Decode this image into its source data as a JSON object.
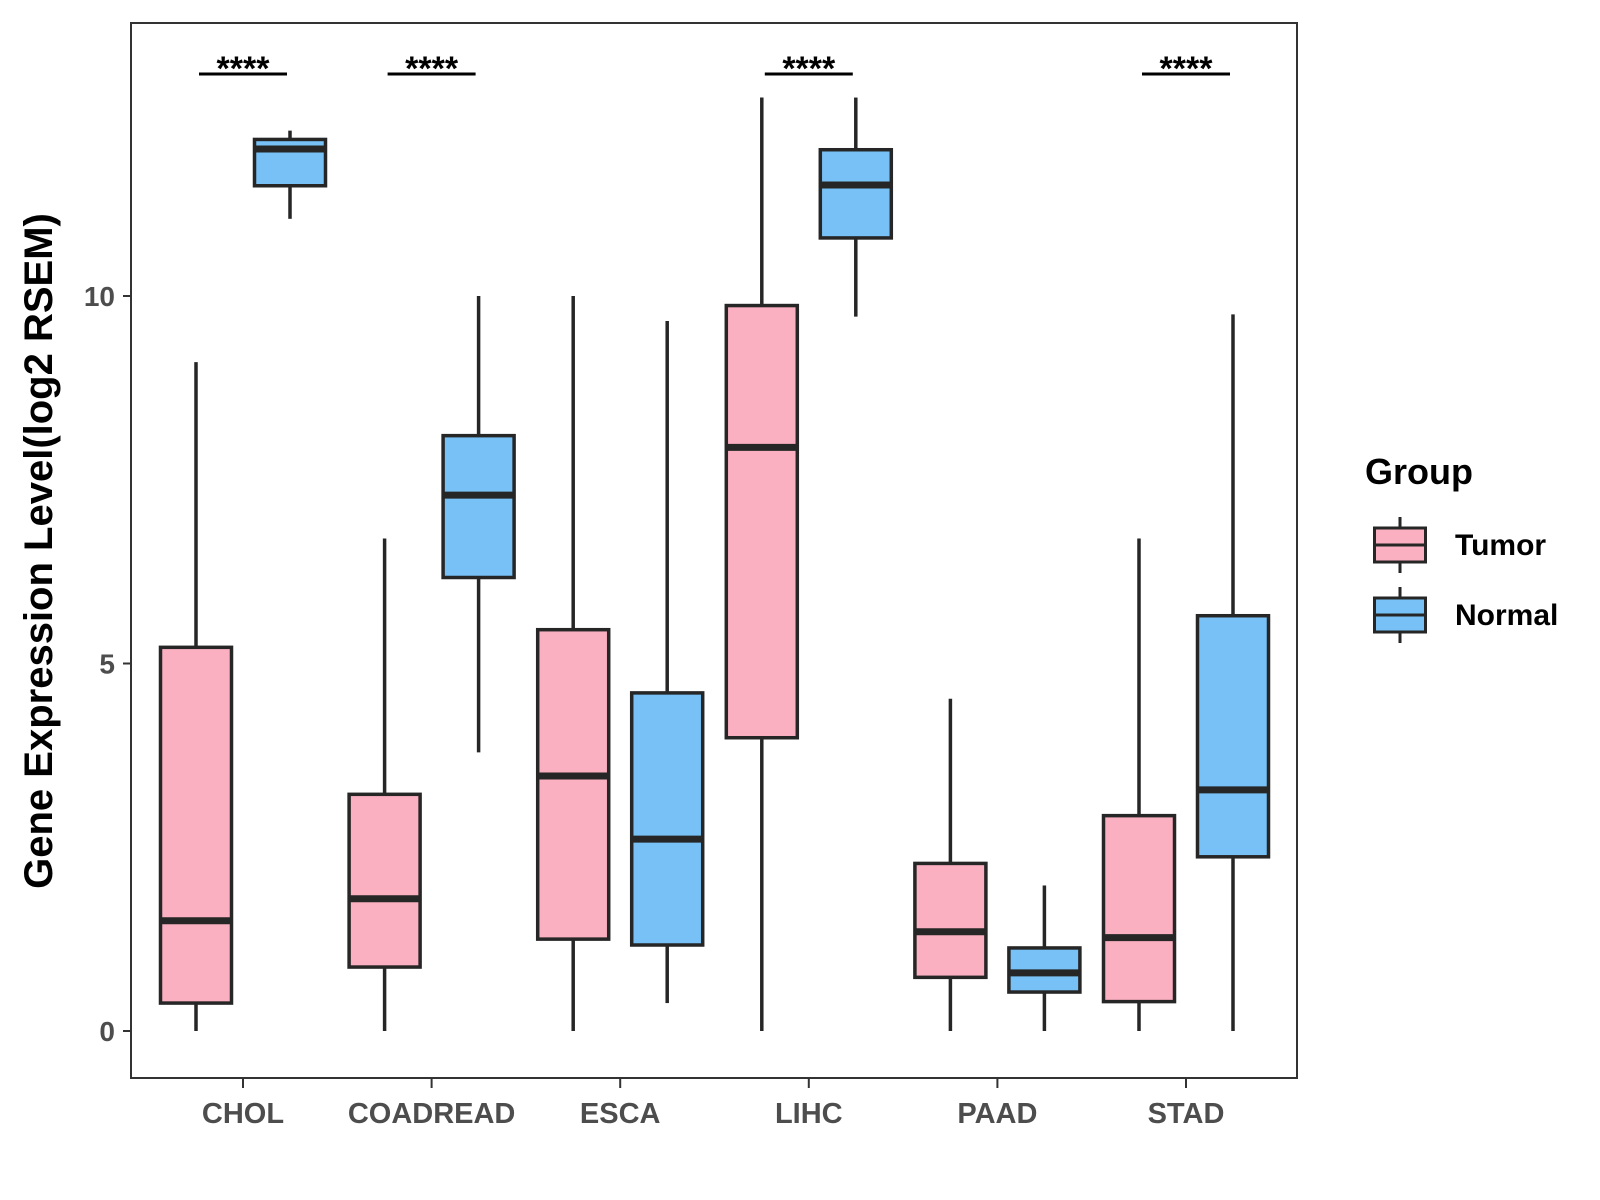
{
  "chart_data": {
    "type": "boxplot",
    "ylabel": "Gene Expression Level(log2 RSEM)",
    "xlabel": "",
    "ylim": [
      -0.65,
      13.7
    ],
    "yticks": [
      0,
      5,
      10
    ],
    "categories": [
      "CHOL",
      "COADREAD",
      "ESCA",
      "LIHC",
      "PAAD",
      "STAD"
    ],
    "series": [
      {
        "name": "Tumor",
        "color": "#FBB0C2",
        "boxes": [
          {
            "min": 0.0,
            "q1": 0.38,
            "median": 1.5,
            "q3": 5.22,
            "max": 9.1
          },
          {
            "min": 0.0,
            "q1": 0.87,
            "median": 1.8,
            "q3": 3.22,
            "max": 6.7
          },
          {
            "min": 0.0,
            "q1": 1.25,
            "median": 3.47,
            "q3": 5.46,
            "max": 10.0
          },
          {
            "min": 0.0,
            "q1": 3.99,
            "median": 7.94,
            "q3": 9.87,
            "max": 12.7
          },
          {
            "min": 0.0,
            "q1": 0.73,
            "median": 1.35,
            "q3": 2.28,
            "max": 4.52
          },
          {
            "min": 0.0,
            "q1": 0.4,
            "median": 1.27,
            "q3": 2.93,
            "max": 6.7
          }
        ]
      },
      {
        "name": "Normal",
        "color": "#77C1F7",
        "boxes": [
          {
            "min": 11.05,
            "q1": 11.5,
            "median": 12.0,
            "q3": 12.13,
            "max": 12.25
          },
          {
            "min": 3.79,
            "q1": 6.17,
            "median": 7.29,
            "q3": 8.1,
            "max": 10.0
          },
          {
            "min": 0.38,
            "q1": 1.17,
            "median": 2.61,
            "q3": 4.6,
            "max": 9.66
          },
          {
            "min": 9.72,
            "q1": 10.79,
            "median": 11.51,
            "q3": 11.99,
            "max": 12.7
          },
          {
            "min": 0.0,
            "q1": 0.53,
            "median": 0.79,
            "q3": 1.13,
            "max": 1.98
          },
          {
            "min": 0.0,
            "q1": 2.37,
            "median": 3.28,
            "q3": 5.65,
            "max": 9.75
          }
        ]
      }
    ],
    "significance": [
      {
        "category": "CHOL",
        "label": "****"
      },
      {
        "category": "COADREAD",
        "label": "****"
      },
      {
        "category": "LIHC",
        "label": "****"
      },
      {
        "category": "STAD",
        "label": "****"
      }
    ],
    "legend": {
      "title": "Group",
      "entries": [
        "Tumor",
        "Normal"
      ],
      "position": "right"
    },
    "grid": false
  }
}
